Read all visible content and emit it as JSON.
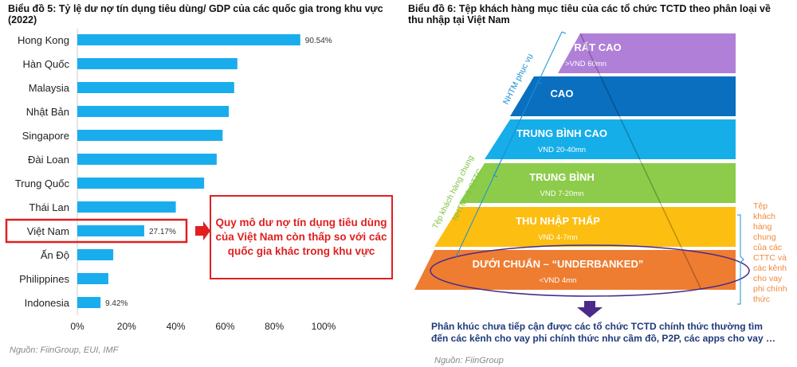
{
  "chart_data": [
    {
      "type": "bar",
      "orientation": "horizontal",
      "title": "Biểu đồ 5: Tỷ lệ dư nợ tín dụng tiêu dùng/ GDP của các quốc gia trong khu vực (2022)",
      "categories": [
        "Hong Kong",
        "Hàn Quốc",
        "Malaysia",
        "Nhật Bản",
        "Singapore",
        "Đài Loan",
        "Trung Quốc",
        "Thái Lan",
        "Việt Nam",
        "Ấn Độ",
        "Philippines",
        "Indonesia"
      ],
      "values": [
        90.54,
        65,
        63.7,
        61.5,
        59,
        56.6,
        51.5,
        40,
        27.17,
        14.6,
        12.6,
        9.42
      ],
      "data_labels": {
        "0": "90.54%",
        "8": "27.17%",
        "11": "9.42%"
      },
      "xticks": [
        "0%",
        "20%",
        "40%",
        "60%",
        "80%",
        "100%"
      ],
      "xlim": [
        0,
        100
      ],
      "grid": false,
      "bar_color": "#1aadee",
      "highlight": {
        "category": "Việt Nam",
        "color": "#e02020"
      },
      "callout": "Quy mô dư nợ tín dụng tiêu dùng của Việt Nam còn thấp so với các quốc gia khác trong khu vực",
      "source": "Nguồn: FiinGroup, EUI, IMF"
    }
  ],
  "diagram": {
    "title": "Biểu đồ 6: Tệp khách hàng mục tiêu của các tổ chức TCTD theo phân loại về thu nhập tại Việt Nam",
    "layers": [
      {
        "label": "RẤT CAO",
        "range": ">VND 60mn",
        "color": "#b07fd8"
      },
      {
        "label": "CAO",
        "range": "",
        "color": "#0a6fbf"
      },
      {
        "label": "TRUNG BÌNH CAO",
        "range": "VND 20-40mn",
        "color": "#16aee8"
      },
      {
        "label": "TRUNG BÌNH",
        "range": "VND 7-20mn",
        "color": "#8ccc4a"
      },
      {
        "label": "THU NHẬP THẤP",
        "range": "VND 4-7mn",
        "color": "#fcbe10"
      },
      {
        "label": "DƯỚI CHUẨN – “UNDERBANKED”",
        "range": "<VND 4mn",
        "color": "#ee7d32"
      }
    ],
    "brackets": {
      "nhtm": "NHTM phục vụ",
      "shared1": "Tệp khách hàng chung",
      "shared2": "NHTM và CTTC",
      "cttc": [
        "Tệp",
        "khách",
        "hàng",
        "chung",
        "của các",
        "CTTC và",
        "các kênh",
        "cho vay",
        "phi chính",
        "thức"
      ]
    },
    "footnote": "Phân khúc chưa tiếp cận được các tổ chức TCTD chính thức thường tìm đến các kênh cho vay phi chính thức như cầm đồ, P2P, các apps cho vay …",
    "source": "Nguồn: FiinGroup",
    "colors": {
      "ellipse": "#4b2a8a",
      "nhtm": "#1b8fd6",
      "shared": "#7cc242",
      "cttc": "#f08a3c",
      "footnote": "#1f3a7a"
    }
  }
}
